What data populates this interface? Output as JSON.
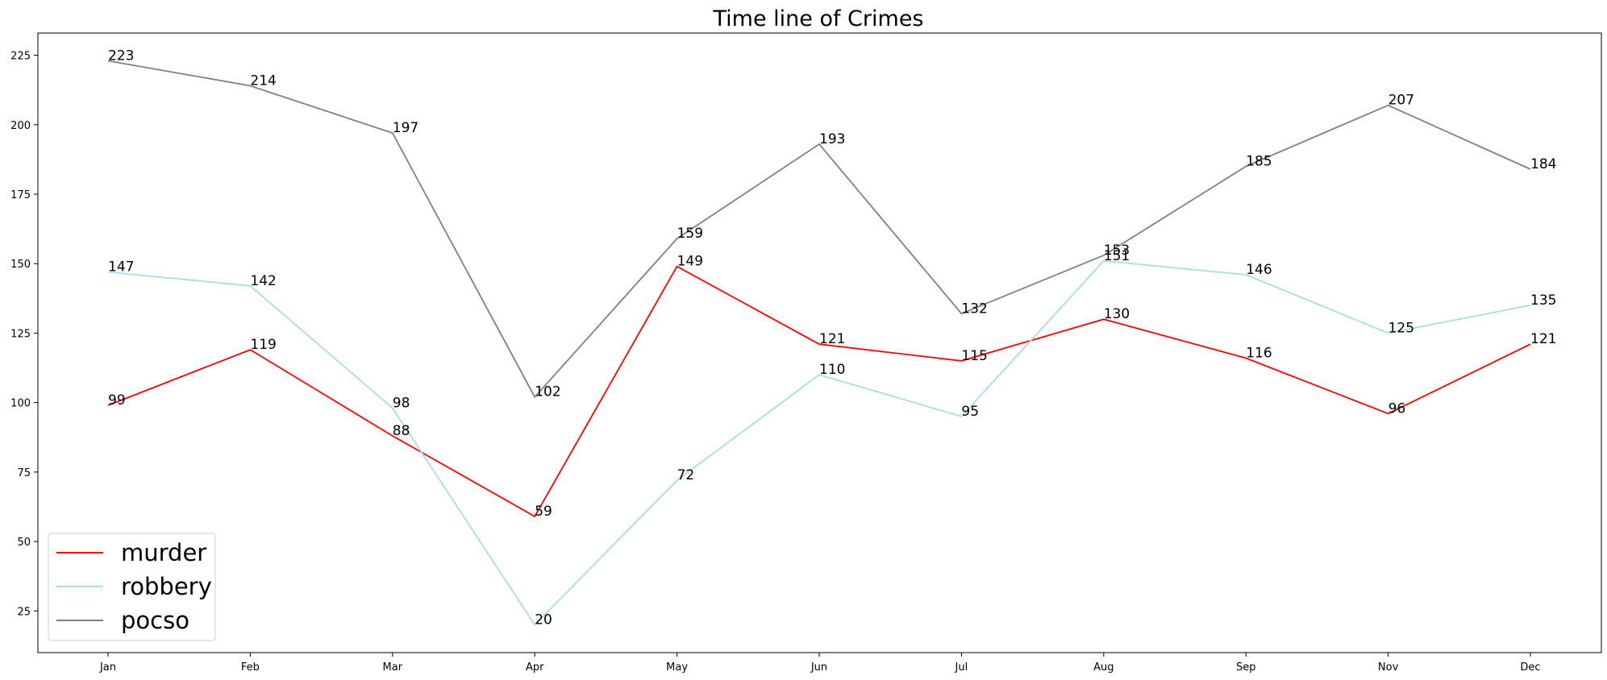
{
  "chart_data": {
    "type": "line",
    "title": "Time line of Crimes",
    "xlabel": "",
    "ylabel": "",
    "categories": [
      "Jan",
      "Feb",
      "Mar",
      "Apr",
      "May",
      "Jun",
      "Jul",
      "Aug",
      "Sep",
      "Nov",
      "Dec"
    ],
    "series": [
      {
        "name": "murder",
        "color": "#ff0000",
        "values": [
          99,
          119,
          88,
          59,
          149,
          121,
          115,
          130,
          116,
          96,
          121
        ]
      },
      {
        "name": "robbery",
        "color": "#a8dce8",
        "values": [
          147,
          142,
          98,
          20,
          72,
          110,
          95,
          151,
          146,
          125,
          135
        ]
      },
      {
        "name": "pocso",
        "color": "#808080",
        "values": [
          223,
          214,
          197,
          102,
          159,
          193,
          132,
          153,
          185,
          207,
          184
        ]
      }
    ],
    "yticks": [
      25,
      50,
      75,
      100,
      125,
      150,
      175,
      200,
      225
    ],
    "ylim": [
      10,
      233
    ],
    "grid": false,
    "legend_position": "lower-left"
  }
}
